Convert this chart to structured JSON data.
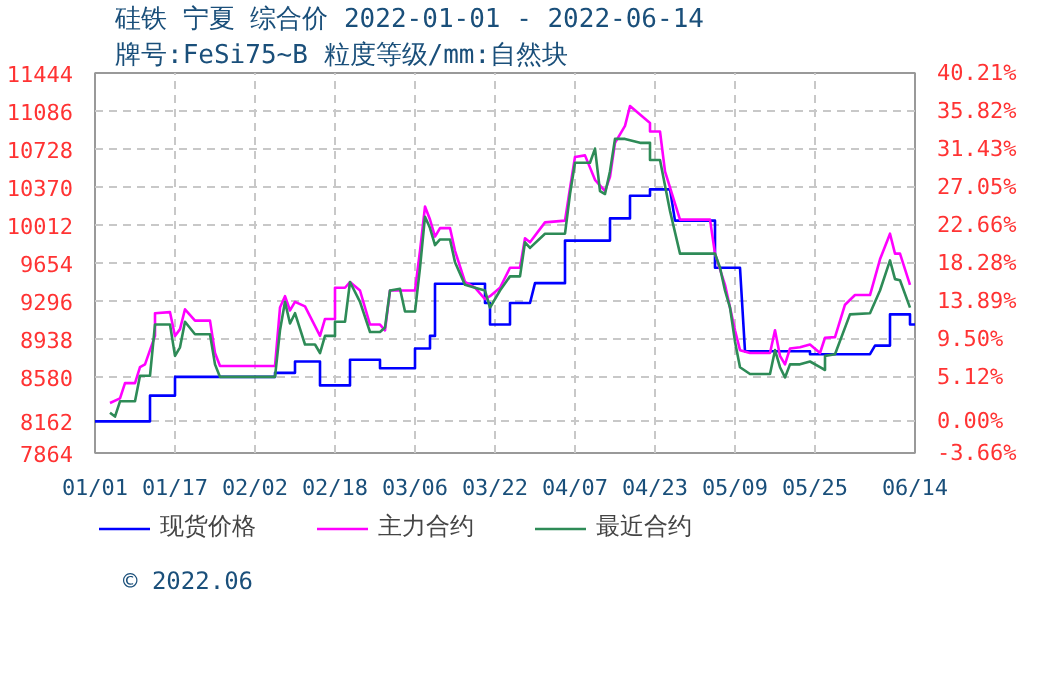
{
  "chart_data": {
    "type": "line",
    "title": "硅铁 宁夏 综合价 2022-01-01 - 2022-06-14",
    "subtitle": "牌号:FeSi75~B 粒度等级/mm:自然块",
    "annotations": [
      "© 2022.06"
    ],
    "xlim": [
      "2022-01-01",
      "2022-06-14"
    ],
    "xticks": [
      {
        "value": "2022-01-01",
        "label": "01/01"
      },
      {
        "value": "2022-01-17",
        "label": "01/17"
      },
      {
        "value": "2022-02-02",
        "label": "02/02"
      },
      {
        "value": "2022-02-18",
        "label": "02/18"
      },
      {
        "value": "2022-03-06",
        "label": "03/06"
      },
      {
        "value": "2022-03-22",
        "label": "03/22"
      },
      {
        "value": "2022-04-07",
        "label": "04/07"
      },
      {
        "value": "2022-04-23",
        "label": "04/23"
      },
      {
        "value": "2022-05-09",
        "label": "05/09"
      },
      {
        "value": "2022-05-25",
        "label": "05/25"
      },
      {
        "value": "2022-06-14",
        "label": "06/14"
      }
    ],
    "ylim": [
      7864,
      11444
    ],
    "yticks": [
      7864,
      8162,
      8580,
      8938,
      9296,
      9654,
      10012,
      10370,
      10728,
      11086,
      11444
    ],
    "y2lim": [
      -3.66,
      40.21
    ],
    "y2ticks": [
      {
        "value": -3.66,
        "label": "-3.66%"
      },
      {
        "value": 0,
        "label": "0.00%"
      },
      {
        "value": 5.12,
        "label": "5.12%"
      },
      {
        "value": 9.5,
        "label": "9.50%"
      },
      {
        "value": 13.89,
        "label": "13.89%"
      },
      {
        "value": 18.28,
        "label": "18.28%"
      },
      {
        "value": 22.66,
        "label": "22.66%"
      },
      {
        "value": 27.05,
        "label": "27.05%"
      },
      {
        "value": 31.43,
        "label": "31.43%"
      },
      {
        "value": 35.82,
        "label": "35.82%"
      },
      {
        "value": 40.21,
        "label": "40.21%"
      }
    ],
    "grid": true,
    "legend": "bottom",
    "line_style": "solid",
    "series": [
      {
        "name": "现货价格",
        "color": "#0000ff",
        "x": [
          "2022-01-01",
          "2022-01-12",
          "2022-01-12",
          "2022-01-17",
          "2022-01-17",
          "2022-02-06",
          "2022-02-06",
          "2022-02-10",
          "2022-02-10",
          "2022-02-15",
          "2022-02-15",
          "2022-02-21",
          "2022-02-21",
          "2022-02-27",
          "2022-02-27",
          "2022-03-06",
          "2022-03-06",
          "2022-03-09",
          "2022-03-09",
          "2022-03-10",
          "2022-03-10",
          "2022-03-20",
          "2022-03-20",
          "2022-03-21",
          "2022-03-21",
          "2022-03-25",
          "2022-03-25",
          "2022-03-29",
          "2022-03-30",
          "2022-04-05",
          "2022-04-05",
          "2022-04-14",
          "2022-04-14",
          "2022-04-18",
          "2022-04-18",
          "2022-04-22",
          "2022-04-22",
          "2022-04-26",
          "2022-04-27",
          "2022-05-05",
          "2022-05-05",
          "2022-05-10",
          "2022-05-11",
          "2022-05-24",
          "2022-05-24",
          "2022-06-05",
          "2022-06-06",
          "2022-06-09",
          "2022-06-09",
          "2022-06-13",
          "2022-06-13",
          "2022-06-14"
        ],
        "values": [
          8162,
          8162,
          8405,
          8405,
          8581,
          8581,
          8619,
          8619,
          8726,
          8726,
          8501,
          8501,
          8742,
          8742,
          8662,
          8662,
          8849,
          8849,
          8967,
          8967,
          9459,
          9459,
          9277,
          9277,
          9074,
          9074,
          9277,
          9277,
          9464,
          9464,
          9865,
          9865,
          10074,
          10074,
          10288,
          10288,
          10348,
          10348,
          10053,
          10053,
          9609,
          9609,
          8822,
          8822,
          8795,
          8795,
          8876,
          8876,
          9170,
          9170,
          9074,
          9074
        ]
      },
      {
        "name": "主力合约",
        "color": "#ff00ff",
        "x": [
          "2022-01-04",
          "2022-01-06",
          "2022-01-07",
          "2022-01-09",
          "2022-01-10",
          "2022-01-11",
          "2022-01-13",
          "2022-01-13",
          "2022-01-16",
          "2022-01-17",
          "2022-01-18",
          "2022-01-19",
          "2022-01-21",
          "2022-01-24",
          "2022-01-25",
          "2022-01-26",
          "2022-02-06",
          "2022-02-07",
          "2022-02-08",
          "2022-02-09",
          "2022-02-10",
          "2022-02-12",
          "2022-02-15",
          "2022-02-16",
          "2022-02-18",
          "2022-02-18",
          "2022-02-20",
          "2022-02-21",
          "2022-02-23",
          "2022-02-25",
          "2022-02-27",
          "2022-02-28",
          "2022-03-01",
          "2022-03-06",
          "2022-03-07",
          "2022-03-08",
          "2022-03-09",
          "2022-03-10",
          "2022-03-11",
          "2022-03-13",
          "2022-03-14",
          "2022-03-16",
          "2022-03-18",
          "2022-03-20",
          "2022-03-21",
          "2022-03-23",
          "2022-03-25",
          "2022-03-27",
          "2022-03-28",
          "2022-03-29",
          "2022-04-01",
          "2022-04-05",
          "2022-04-06",
          "2022-04-07",
          "2022-04-09",
          "2022-04-11",
          "2022-04-13",
          "2022-04-14",
          "2022-04-15",
          "2022-04-17",
          "2022-04-18",
          "2022-04-20",
          "2022-04-22",
          "2022-04-22",
          "2022-04-24",
          "2022-04-25",
          "2022-04-28",
          "2022-05-04",
          "2022-05-05",
          "2022-05-07",
          "2022-05-09",
          "2022-05-10",
          "2022-05-12",
          "2022-05-16",
          "2022-05-17",
          "2022-05-18",
          "2022-05-19",
          "2022-05-20",
          "2022-05-22",
          "2022-05-24",
          "2022-05-26",
          "2022-05-27",
          "2022-05-29",
          "2022-05-31",
          "2022-06-02",
          "2022-06-05",
          "2022-06-07",
          "2022-06-09",
          "2022-06-10",
          "2022-06-11",
          "2022-06-13"
        ],
        "values": [
          8335,
          8378,
          8522,
          8522,
          8672,
          8699,
          8967,
          9181,
          9191,
          8967,
          9031,
          9218,
          9111,
          9111,
          8806,
          8683,
          8683,
          9234,
          9341,
          9207,
          9288,
          9245,
          8967,
          9127,
          9127,
          9421,
          9421,
          9475,
          9395,
          9074,
          9074,
          9020,
          9395,
          9395,
          9769,
          10186,
          10063,
          9903,
          9983,
          9983,
          9769,
          9475,
          9421,
          9314,
          9341,
          9421,
          9609,
          9609,
          9887,
          9849,
          10037,
          10053,
          10358,
          10652,
          10668,
          10438,
          10331,
          10465,
          10786,
          10946,
          11133,
          11053,
          10973,
          10893,
          10893,
          10518,
          10063,
          10063,
          9742,
          9448,
          9020,
          8833,
          8806,
          8806,
          9020,
          8779,
          8699,
          8849,
          8860,
          8886,
          8806,
          8950,
          8956,
          9261,
          9352,
          9352,
          9689,
          9930,
          9742,
          9742,
          9448
        ]
      },
      {
        "name": "最近合约",
        "color": "#2e8b57",
        "x": [
          "2022-01-04",
          "2022-01-05",
          "2022-01-06",
          "2022-01-09",
          "2022-01-10",
          "2022-01-12",
          "2022-01-13",
          "2022-01-16",
          "2022-01-17",
          "2022-01-18",
          "2022-01-19",
          "2022-01-21",
          "2022-01-24",
          "2022-01-25",
          "2022-01-26",
          "2022-02-06",
          "2022-02-07",
          "2022-02-08",
          "2022-02-09",
          "2022-02-10",
          "2022-02-12",
          "2022-02-14",
          "2022-02-15",
          "2022-02-16",
          "2022-02-18",
          "2022-02-18",
          "2022-02-20",
          "2022-02-21",
          "2022-02-23",
          "2022-02-25",
          "2022-02-27",
          "2022-02-28",
          "2022-03-01",
          "2022-03-03",
          "2022-03-04",
          "2022-03-06",
          "2022-03-07",
          "2022-03-08",
          "2022-03-09",
          "2022-03-10",
          "2022-03-11",
          "2022-03-13",
          "2022-03-14",
          "2022-03-16",
          "2022-03-18",
          "2022-03-20",
          "2022-03-21",
          "2022-03-23",
          "2022-03-25",
          "2022-03-27",
          "2022-03-28",
          "2022-03-29",
          "2022-04-01",
          "2022-04-05",
          "2022-04-06",
          "2022-04-07",
          "2022-04-10",
          "2022-04-11",
          "2022-04-12",
          "2022-04-13",
          "2022-04-14",
          "2022-04-15",
          "2022-04-17",
          "2022-04-20",
          "2022-04-22",
          "2022-04-22",
          "2022-04-24",
          "2022-04-26",
          "2022-04-28",
          "2022-05-05",
          "2022-05-06",
          "2022-05-07",
          "2022-05-08",
          "2022-05-09",
          "2022-05-10",
          "2022-05-12",
          "2022-05-16",
          "2022-05-17",
          "2022-05-18",
          "2022-05-19",
          "2022-05-20",
          "2022-05-22",
          "2022-05-24",
          "2022-05-26",
          "2022-05-27",
          "2022-05-27",
          "2022-05-29",
          "2022-06-01",
          "2022-06-05",
          "2022-06-07",
          "2022-06-09",
          "2022-06-10",
          "2022-06-11",
          "2022-06-13"
        ],
        "values": [
          8244,
          8207,
          8351,
          8351,
          8592,
          8592,
          9074,
          9074,
          8779,
          8860,
          9100,
          8983,
          8983,
          8699,
          8581,
          8581,
          9020,
          9288,
          9084,
          9181,
          8886,
          8886,
          8806,
          8967,
          8967,
          9100,
          9100,
          9475,
          9288,
          9004,
          9004,
          9047,
          9395,
          9411,
          9197,
          9197,
          9609,
          10090,
          9983,
          9823,
          9876,
          9876,
          9662,
          9448,
          9421,
          9395,
          9234,
          9395,
          9528,
          9528,
          9849,
          9796,
          9930,
          9930,
          10304,
          10598,
          10598,
          10732,
          10331,
          10304,
          10518,
          10823,
          10823,
          10786,
          10786,
          10625,
          10625,
          10144,
          9742,
          9742,
          9609,
          9395,
          9234,
          8913,
          8672,
          8608,
          8608,
          8833,
          8672,
          8576,
          8699,
          8699,
          8726,
          8672,
          8646,
          8779,
          8795,
          9170,
          9181,
          9395,
          9678,
          9502,
          9491,
          9234
        ]
      }
    ]
  }
}
